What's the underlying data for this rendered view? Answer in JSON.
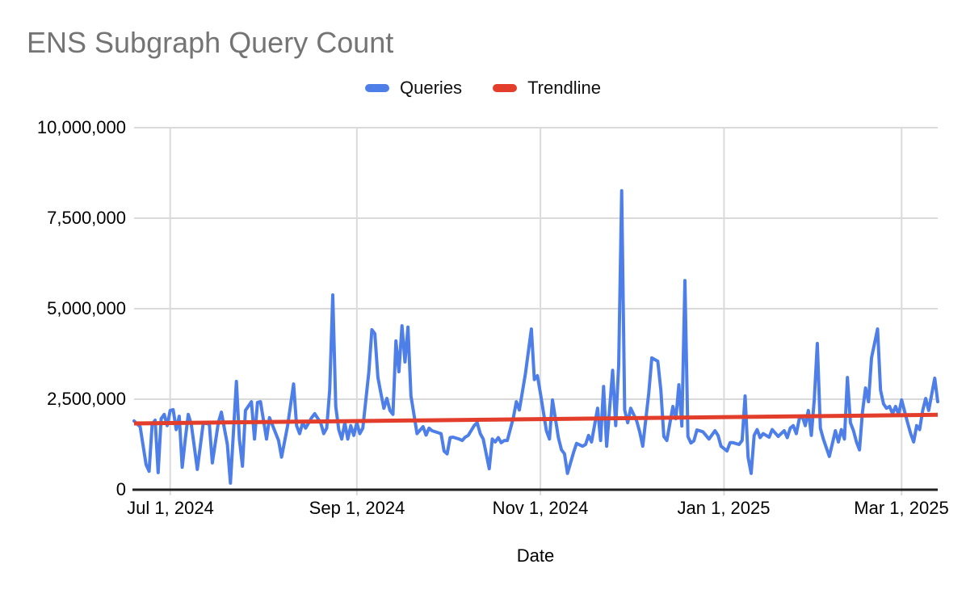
{
  "title": "ENS Subgraph Query Count",
  "legend": {
    "items": [
      {
        "label": "Queries",
        "color": "#4e7fe8"
      },
      {
        "label": "Trendline",
        "color": "#e33d2c"
      }
    ]
  },
  "x_axis": {
    "title": "Date",
    "ticks": [
      {
        "label": "Jul 1, 2024",
        "day": 12
      },
      {
        "label": "Sep 1, 2024",
        "day": 74
      },
      {
        "label": "Nov 1, 2024",
        "day": 135
      },
      {
        "label": "Jan 1, 2025",
        "day": 196
      },
      {
        "label": "Mar 1, 2025",
        "day": 255
      }
    ]
  },
  "y_axis": {
    "ticks": [
      {
        "label": "0",
        "value": 0
      },
      {
        "label": "2,500,000",
        "value": 2500000
      },
      {
        "label": "5,000,000",
        "value": 5000000
      },
      {
        "label": "7,500,000",
        "value": 7500000
      },
      {
        "label": "10,000,000",
        "value": 10000000
      }
    ]
  },
  "chart_data": {
    "type": "line",
    "title": "ENS Subgraph Query Count",
    "xlabel": "Date",
    "ylabel": "",
    "ylim": [
      0,
      10000000
    ],
    "grid": true,
    "legend_position": "top",
    "unit": "queries per day, stored in millions",
    "start_date": "2024-06-19",
    "end_date": "2025-03-13",
    "total_days": 267,
    "x_tick_labels": [
      "Jul 1, 2024",
      "Sep 1, 2024",
      "Nov 1, 2024",
      "Jan 1, 2025",
      "Mar 1, 2025"
    ],
    "series": [
      {
        "name": "Queries",
        "color": "#4e7fe8",
        "points_format": "[day_offset_from_start_date, queries_in_millions]",
        "points": [
          [
            0,
            1.9
          ],
          [
            2,
            1.74
          ],
          [
            4,
            0.69
          ],
          [
            5,
            0.51
          ],
          [
            6,
            1.81
          ],
          [
            7,
            1.92
          ],
          [
            8,
            0.47
          ],
          [
            9,
            1.96
          ],
          [
            10,
            2.08
          ],
          [
            11,
            1.77
          ],
          [
            12,
            2.19
          ],
          [
            13,
            2.21
          ],
          [
            14,
            1.66
          ],
          [
            15,
            2.03
          ],
          [
            16,
            0.62
          ],
          [
            17,
            1.4
          ],
          [
            18,
            2.08
          ],
          [
            19,
            1.81
          ],
          [
            20,
            1.2
          ],
          [
            21,
            0.56
          ],
          [
            23,
            1.85
          ],
          [
            25,
            1.81
          ],
          [
            26,
            0.74
          ],
          [
            28,
            1.85
          ],
          [
            29,
            2.14
          ],
          [
            31,
            1.25
          ],
          [
            32,
            0.18
          ],
          [
            34,
            2.99
          ],
          [
            35,
            1.4
          ],
          [
            36,
            0.65
          ],
          [
            37,
            2.19
          ],
          [
            39,
            2.43
          ],
          [
            40,
            1.4
          ],
          [
            41,
            2.41
          ],
          [
            42,
            2.43
          ],
          [
            44,
            1.4
          ],
          [
            45,
            1.99
          ],
          [
            48,
            1.36
          ],
          [
            49,
            0.9
          ],
          [
            51,
            1.77
          ],
          [
            53,
            2.92
          ],
          [
            54,
            1.77
          ],
          [
            55,
            1.55
          ],
          [
            56,
            1.85
          ],
          [
            57,
            1.7
          ],
          [
            59,
            1.99
          ],
          [
            60,
            2.1
          ],
          [
            62,
            1.85
          ],
          [
            63,
            1.55
          ],
          [
            64,
            1.7
          ],
          [
            65,
            2.75
          ],
          [
            66,
            5.38
          ],
          [
            67,
            2.3
          ],
          [
            68,
            1.66
          ],
          [
            69,
            1.4
          ],
          [
            70,
            1.85
          ],
          [
            71,
            1.4
          ],
          [
            72,
            1.77
          ],
          [
            73,
            1.5
          ],
          [
            74,
            1.85
          ],
          [
            75,
            1.55
          ],
          [
            76,
            1.7
          ],
          [
            78,
            3.26
          ],
          [
            79,
            4.42
          ],
          [
            80,
            4.31
          ],
          [
            81,
            3.1
          ],
          [
            82,
            2.66
          ],
          [
            83,
            2.25
          ],
          [
            84,
            2.52
          ],
          [
            85,
            2.19
          ],
          [
            86,
            2.08
          ],
          [
            87,
            4.11
          ],
          [
            88,
            3.26
          ],
          [
            89,
            4.53
          ],
          [
            90,
            3.53
          ],
          [
            91,
            4.49
          ],
          [
            92,
            2.59
          ],
          [
            93,
            2.07
          ],
          [
            94,
            1.55
          ],
          [
            96,
            1.74
          ],
          [
            97,
            1.51
          ],
          [
            98,
            1.7
          ],
          [
            99,
            1.63
          ],
          [
            102,
            1.55
          ],
          [
            103,
            1.07
          ],
          [
            104,
            0.99
          ],
          [
            105,
            1.44
          ],
          [
            106,
            1.45
          ],
          [
            108,
            1.4
          ],
          [
            109,
            1.36
          ],
          [
            110,
            1.45
          ],
          [
            111,
            1.5
          ],
          [
            113,
            1.77
          ],
          [
            114,
            1.85
          ],
          [
            115,
            1.55
          ],
          [
            116,
            1.4
          ],
          [
            118,
            0.58
          ],
          [
            119,
            1.4
          ],
          [
            120,
            1.32
          ],
          [
            121,
            1.44
          ],
          [
            122,
            1.3
          ],
          [
            123,
            1.36
          ],
          [
            124,
            1.36
          ],
          [
            126,
            1.99
          ],
          [
            127,
            2.43
          ],
          [
            128,
            2.2
          ],
          [
            130,
            3.2
          ],
          [
            132,
            4.44
          ],
          [
            133,
            3.04
          ],
          [
            134,
            3.15
          ],
          [
            135,
            2.66
          ],
          [
            137,
            1.63
          ],
          [
            138,
            1.4
          ],
          [
            139,
            2.48
          ],
          [
            141,
            1.43
          ],
          [
            142,
            1.1
          ],
          [
            143,
            0.99
          ],
          [
            144,
            0.45
          ],
          [
            146,
            1.03
          ],
          [
            147,
            1.28
          ],
          [
            149,
            1.2
          ],
          [
            150,
            1.25
          ],
          [
            151,
            1.5
          ],
          [
            152,
            1.32
          ],
          [
            154,
            2.25
          ],
          [
            155,
            1.36
          ],
          [
            156,
            2.85
          ],
          [
            157,
            1.2
          ],
          [
            159,
            3.3
          ],
          [
            160,
            1.77
          ],
          [
            161,
            3.44
          ],
          [
            162,
            8.26
          ],
          [
            163,
            2.2
          ],
          [
            164,
            1.85
          ],
          [
            165,
            2.25
          ],
          [
            167,
            1.9
          ],
          [
            168,
            1.59
          ],
          [
            169,
            1.2
          ],
          [
            171,
            2.66
          ],
          [
            172,
            3.64
          ],
          [
            174,
            3.55
          ],
          [
            175,
            2.75
          ],
          [
            176,
            1.47
          ],
          [
            177,
            1.36
          ],
          [
            179,
            2.3
          ],
          [
            180,
            1.96
          ],
          [
            181,
            2.9
          ],
          [
            182,
            1.76
          ],
          [
            183,
            5.78
          ],
          [
            184,
            1.47
          ],
          [
            185,
            1.29
          ],
          [
            186,
            1.35
          ],
          [
            187,
            1.65
          ],
          [
            189,
            1.6
          ],
          [
            191,
            1.4
          ],
          [
            193,
            1.63
          ],
          [
            194,
            1.5
          ],
          [
            195,
            1.2
          ],
          [
            197,
            1.07
          ],
          [
            198,
            1.3
          ],
          [
            199,
            1.3
          ],
          [
            201,
            1.25
          ],
          [
            202,
            1.36
          ],
          [
            203,
            2.59
          ],
          [
            204,
            0.9
          ],
          [
            205,
            0.45
          ],
          [
            206,
            1.5
          ],
          [
            207,
            1.66
          ],
          [
            208,
            1.44
          ],
          [
            209,
            1.55
          ],
          [
            211,
            1.45
          ],
          [
            212,
            1.66
          ],
          [
            214,
            1.47
          ],
          [
            216,
            1.63
          ],
          [
            217,
            1.44
          ],
          [
            218,
            1.7
          ],
          [
            219,
            1.77
          ],
          [
            220,
            1.55
          ],
          [
            221,
            1.96
          ],
          [
            222,
            2.03
          ],
          [
            223,
            1.77
          ],
          [
            224,
            2.19
          ],
          [
            225,
            1.5
          ],
          [
            226,
            2.5
          ],
          [
            227,
            4.04
          ],
          [
            228,
            1.7
          ],
          [
            229,
            1.4
          ],
          [
            231,
            0.92
          ],
          [
            233,
            1.63
          ],
          [
            234,
            1.32
          ],
          [
            235,
            1.66
          ],
          [
            236,
            1.4
          ],
          [
            237,
            3.1
          ],
          [
            238,
            1.85
          ],
          [
            239,
            1.63
          ],
          [
            240,
            1.32
          ],
          [
            241,
            1.1
          ],
          [
            242,
            2.14
          ],
          [
            243,
            2.81
          ],
          [
            244,
            2.43
          ],
          [
            245,
            3.64
          ],
          [
            247,
            4.44
          ],
          [
            248,
            2.75
          ],
          [
            249,
            2.37
          ],
          [
            250,
            2.25
          ],
          [
            251,
            2.3
          ],
          [
            252,
            2.1
          ],
          [
            253,
            2.3
          ],
          [
            254,
            2.08
          ],
          [
            255,
            2.48
          ],
          [
            257,
            1.85
          ],
          [
            258,
            1.55
          ],
          [
            259,
            1.32
          ],
          [
            260,
            1.77
          ],
          [
            261,
            1.66
          ],
          [
            262,
            2.19
          ],
          [
            263,
            2.52
          ],
          [
            264,
            2.19
          ],
          [
            266,
            3.08
          ],
          [
            267,
            2.43
          ]
        ]
      },
      {
        "name": "Trendline",
        "color": "#e33d2c",
        "points_format": "[day_offset_from_start_date, queries_in_millions]",
        "points": [
          [
            0,
            1.83
          ],
          [
            267,
            2.07
          ]
        ]
      }
    ]
  }
}
